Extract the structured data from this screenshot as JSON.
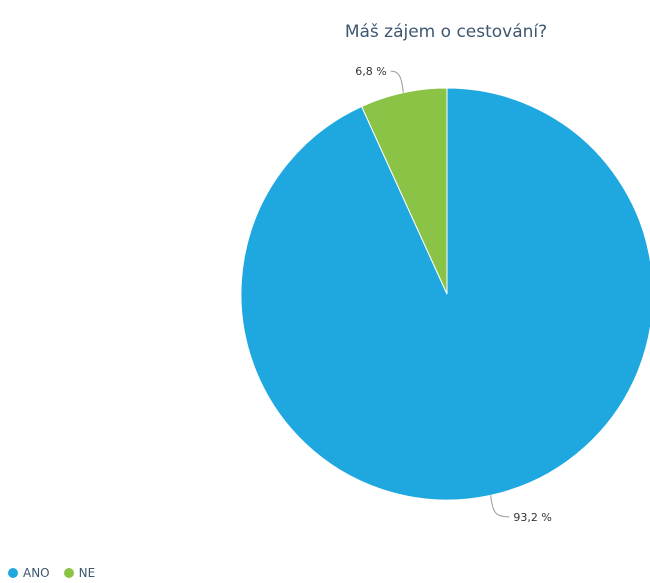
{
  "chart_data": {
    "type": "pie",
    "title": "Máš zájem o cestování?",
    "slices": [
      {
        "name": "ANO",
        "value": 93.2,
        "label": "93,2 %",
        "color": "#1fa8e0"
      },
      {
        "name": "NE",
        "value": 6.8,
        "label": "6,8 %",
        "color": "#8bc346"
      }
    ],
    "legend_position": "bottom-left"
  }
}
